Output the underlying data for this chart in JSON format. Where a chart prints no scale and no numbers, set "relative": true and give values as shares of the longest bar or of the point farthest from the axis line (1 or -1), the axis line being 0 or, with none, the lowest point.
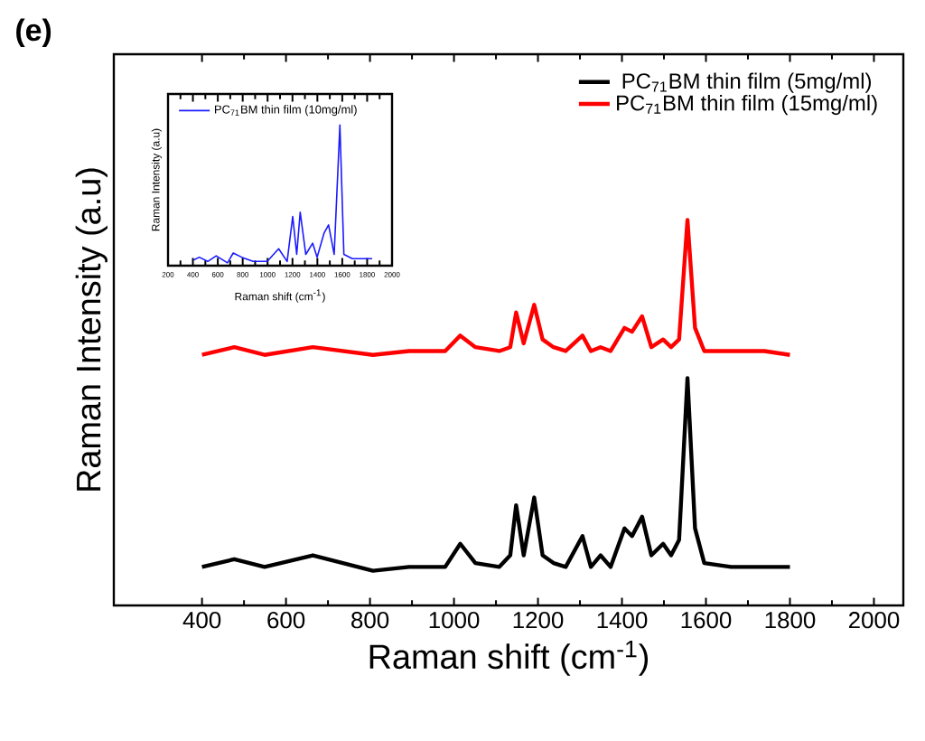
{
  "chart_data": [
    {
      "type": "line",
      "relative": true,
      "xlabel": "Raman shift (cm$^{-1}$)",
      "ylabel": "Raman Intensity (a.u)",
      "annotations": [
        "**(e)**"
      ],
      "xlim": [
        190,
        2070
      ],
      "xticks": [
        400,
        600,
        800,
        1000,
        1200,
        1400,
        1600,
        1800,
        2000
      ],
      "tick_labels": "x",
      "legend": "top right",
      "x": [
        400,
        477,
        549,
        664,
        807,
        893,
        979,
        1015,
        1051,
        1108,
        1134,
        1148,
        1166,
        1191,
        1211,
        1237,
        1266,
        1306,
        1326,
        1349,
        1373,
        1406,
        1424,
        1448,
        1470,
        1498,
        1517,
        1536,
        1556,
        1574,
        1596,
        1660,
        1739,
        1800
      ],
      "series": [
        {
          "name": "PC$_{71}$BM thin film (5mg/ml)",
          "color": "#000000",
          "values": [
            0.1,
            0.12,
            0.1,
            0.13,
            0.09,
            0.1,
            0.1,
            0.16,
            0.11,
            0.1,
            0.13,
            0.26,
            0.13,
            0.28,
            0.13,
            0.11,
            0.1,
            0.18,
            0.1,
            0.13,
            0.1,
            0.2,
            0.18,
            0.23,
            0.13,
            0.16,
            0.13,
            0.17,
            0.59,
            0.2,
            0.11,
            0.1,
            0.1,
            0.1
          ]
        },
        {
          "name": "PC$_{71}$BM thin film (15mg/ml)",
          "color": "#ff0000",
          "values": [
            0.65,
            0.67,
            0.65,
            0.67,
            0.65,
            0.66,
            0.66,
            0.7,
            0.67,
            0.66,
            0.67,
            0.76,
            0.68,
            0.78,
            0.69,
            0.67,
            0.66,
            0.7,
            0.66,
            0.67,
            0.66,
            0.72,
            0.71,
            0.75,
            0.67,
            0.69,
            0.67,
            0.69,
            1.0,
            0.72,
            0.66,
            0.66,
            0.66,
            0.65
          ]
        }
      ]
    },
    {
      "type": "line",
      "relative": true,
      "xlabel": "Raman shift (cm$^{-1}$)",
      "ylabel": "Raman Intensity (a.u)",
      "xlim": [
        200,
        2000
      ],
      "xticks": [
        200,
        400,
        600,
        800,
        1000,
        1200,
        1400,
        1600,
        1800,
        2000
      ],
      "tick_labels": "x",
      "legend": "top left",
      "x": [
        405,
        451,
        519,
        587,
        678,
        724,
        792,
        884,
        997,
        1089,
        1157,
        1202,
        1234,
        1262,
        1307,
        1362,
        1398,
        1453,
        1490,
        1535,
        1581,
        1613,
        1681,
        1840
      ],
      "series": [
        {
          "name": "PC$_{71}$BM thin film (10mg/ml)",
          "color": "#1a1aff",
          "values": [
            0.04,
            0.06,
            0.03,
            0.07,
            0.02,
            0.09,
            0.06,
            0.03,
            0.03,
            0.12,
            0.03,
            0.35,
            0.08,
            0.38,
            0.08,
            0.16,
            0.06,
            0.23,
            0.29,
            0.08,
            1.0,
            0.08,
            0.05,
            0.05
          ]
        }
      ]
    }
  ]
}
